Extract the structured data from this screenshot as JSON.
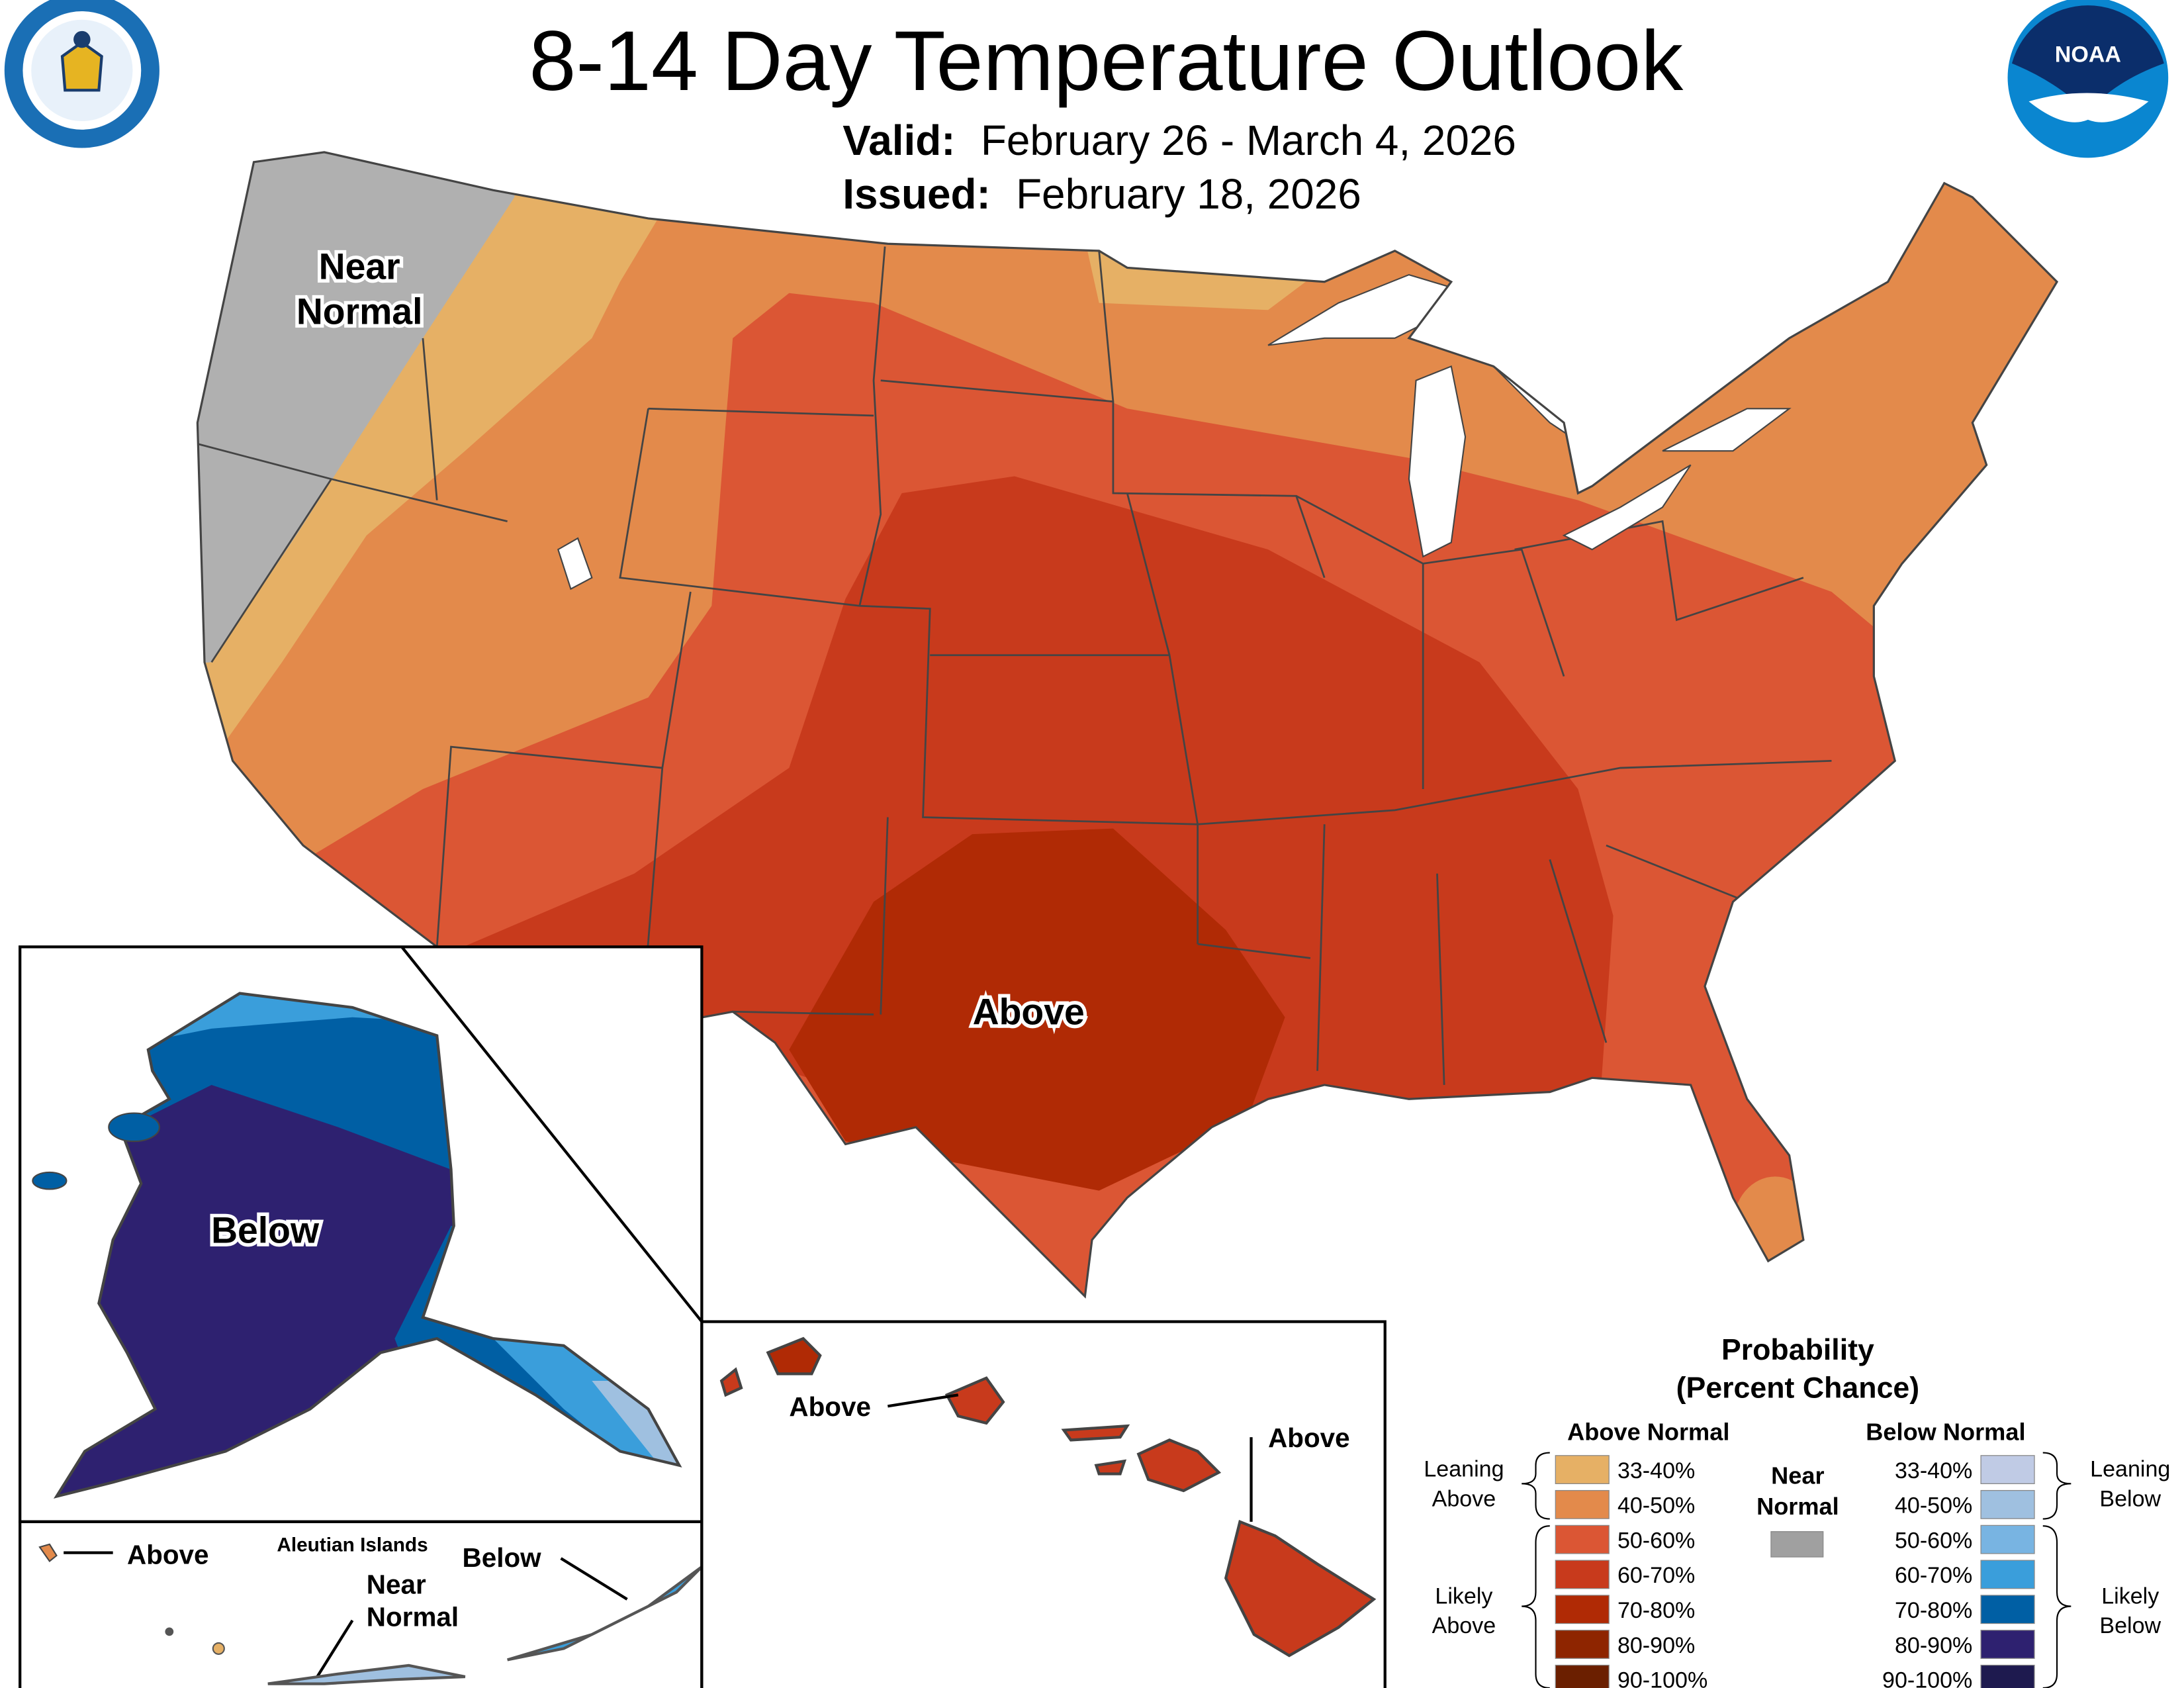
{
  "header": {
    "title": "8-14 Day Temperature Outlook",
    "valid_label": "Valid:",
    "valid_value": "February 26 - March 4, 2026",
    "issued_label": "Issued:",
    "issued_value": "February 18, 2026",
    "left_logo": "Department of Commerce seal",
    "right_logo": "NOAA"
  },
  "map_labels": {
    "conus_near_normal_1": "Near",
    "conus_near_normal_2": "Normal",
    "conus_above": "Above",
    "alaska_below": "Below",
    "hawaii_above_1": "Above",
    "hawaii_above_2": "Above",
    "aleutian_title": "Aleutian Islands",
    "aleutian_above": "Above",
    "aleutian_below": "Below",
    "aleutian_near_1": "Near",
    "aleutian_near_2": "Normal"
  },
  "legend": {
    "title_1": "Probability",
    "title_2": "(Percent Chance)",
    "above_header": "Above Normal",
    "below_header": "Below Normal",
    "near_normal_1": "Near",
    "near_normal_2": "Normal",
    "near_normal_color": "#A0A0A0",
    "leaning_above_1": "Leaning",
    "leaning_above_2": "Above",
    "likely_above_1": "Likely",
    "likely_above_2": "Above",
    "leaning_below_1": "Leaning",
    "leaning_below_2": "Below",
    "likely_below_1": "Likely",
    "likely_below_2": "Below",
    "above": [
      {
        "range": "33-40%",
        "color": "#E6B065"
      },
      {
        "range": "40-50%",
        "color": "#E38A4B"
      },
      {
        "range": "50-60%",
        "color": "#DB5634"
      },
      {
        "range": "60-70%",
        "color": "#C83A1C"
      },
      {
        "range": "70-80%",
        "color": "#B02A05"
      },
      {
        "range": "80-90%",
        "color": "#8E2500"
      },
      {
        "range": "90-100%",
        "color": "#6B1F00"
      }
    ],
    "below": [
      {
        "range": "33-40%",
        "color": "#C0CBE5"
      },
      {
        "range": "40-50%",
        "color": "#9FC0E0"
      },
      {
        "range": "50-60%",
        "color": "#78B4E2"
      },
      {
        "range": "60-70%",
        "color": "#3A9EDB"
      },
      {
        "range": "70-80%",
        "color": "#005FA4"
      },
      {
        "range": "80-90%",
        "color": "#2E2170"
      },
      {
        "range": "90-100%",
        "color": "#1E1A4F"
      }
    ]
  }
}
